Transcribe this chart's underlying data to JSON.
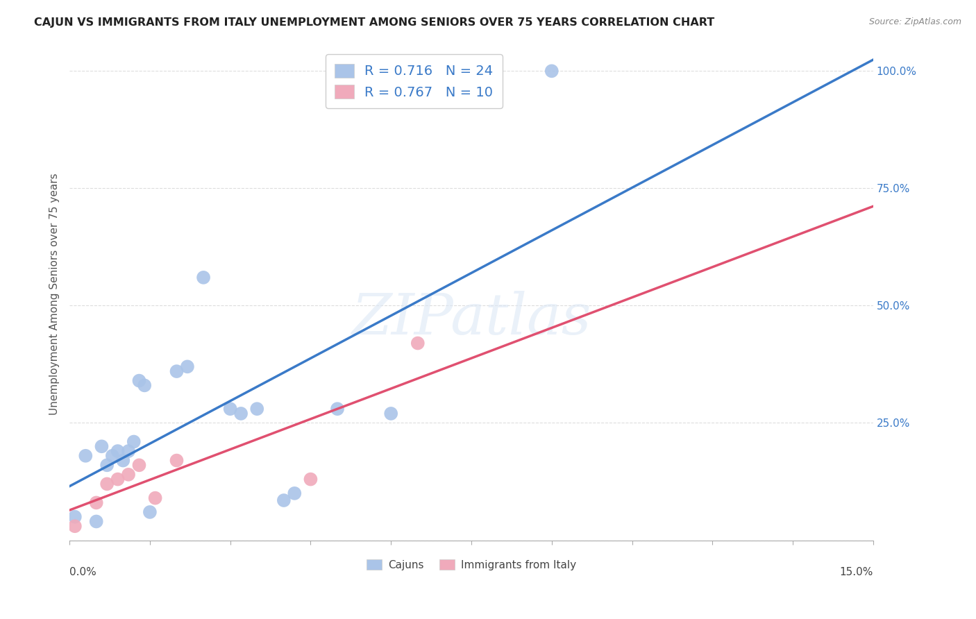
{
  "title": "CAJUN VS IMMIGRANTS FROM ITALY UNEMPLOYMENT AMONG SENIORS OVER 75 YEARS CORRELATION CHART",
  "source": "Source: ZipAtlas.com",
  "ylabel": "Unemployment Among Seniors over 75 years",
  "xlim": [
    0.0,
    0.15
  ],
  "ylim": [
    0.0,
    1.05
  ],
  "yticks": [
    0.0,
    0.25,
    0.5,
    0.75,
    1.0
  ],
  "ytick_labels": [
    "",
    "25.0%",
    "50.0%",
    "75.0%",
    "100.0%"
  ],
  "cajun_R": 0.716,
  "cajun_N": 24,
  "italy_R": 0.767,
  "italy_N": 10,
  "cajun_color": "#aac4e8",
  "cajun_line_color": "#3a7ac8",
  "italy_color": "#f0aabb",
  "italy_line_color": "#e05070",
  "tick_color": "#3a7ac8",
  "background_color": "#ffffff",
  "grid_color": "#dddddd",
  "cajun_x": [
    0.001,
    0.003,
    0.005,
    0.006,
    0.007,
    0.008,
    0.009,
    0.01,
    0.011,
    0.012,
    0.013,
    0.014,
    0.015,
    0.02,
    0.022,
    0.025,
    0.03,
    0.032,
    0.035,
    0.04,
    0.042,
    0.05,
    0.06,
    0.09
  ],
  "cajun_y": [
    0.05,
    0.18,
    0.04,
    0.2,
    0.16,
    0.18,
    0.19,
    0.17,
    0.19,
    0.21,
    0.34,
    0.33,
    0.06,
    0.36,
    0.37,
    0.56,
    0.28,
    0.27,
    0.28,
    0.085,
    0.1,
    0.28,
    0.27,
    1.0
  ],
  "italy_x": [
    0.001,
    0.005,
    0.007,
    0.009,
    0.011,
    0.013,
    0.016,
    0.02,
    0.045,
    0.065
  ],
  "italy_y": [
    0.03,
    0.08,
    0.12,
    0.13,
    0.14,
    0.16,
    0.09,
    0.17,
    0.13,
    0.42
  ],
  "watermark_text": "ZIPatlas",
  "watermark_color": "#dde8f5",
  "legend_label_cajun": "Cajuns",
  "legend_label_italy": "Immigrants from Italy"
}
